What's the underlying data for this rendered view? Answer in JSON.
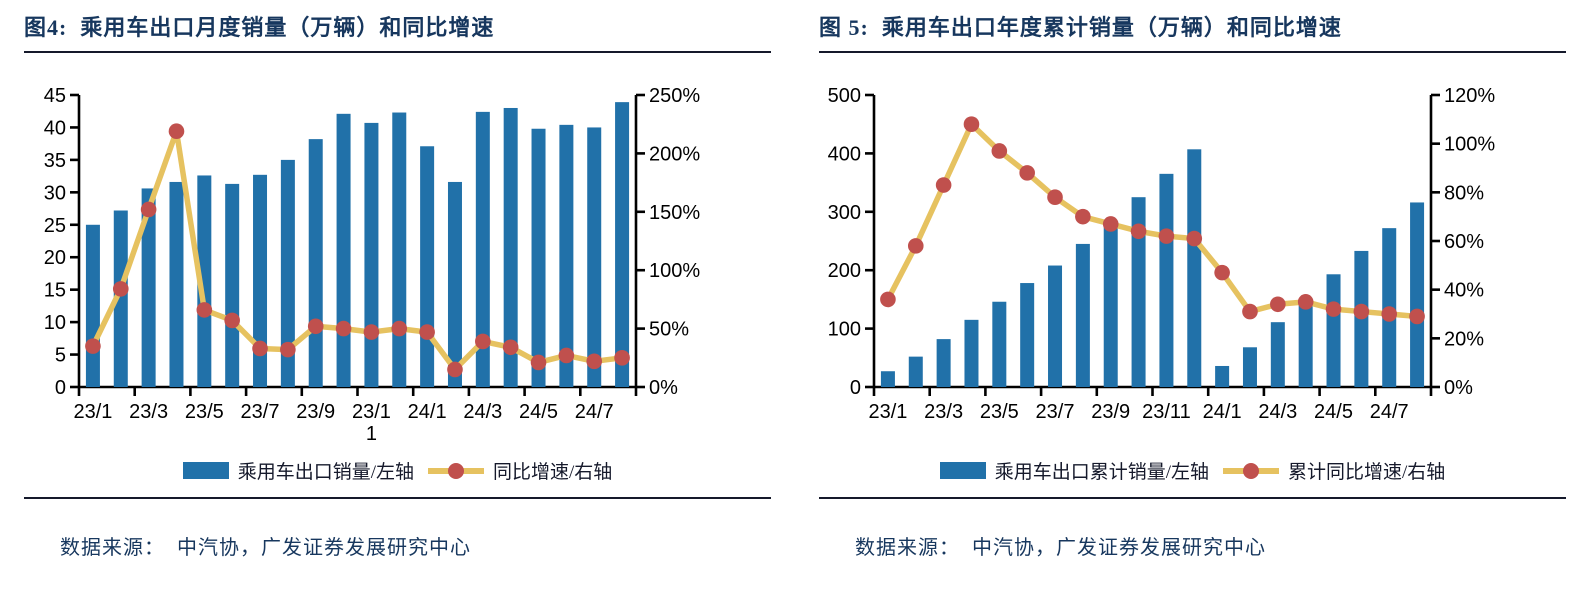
{
  "colors": {
    "bar": "#2171A9",
    "line": "#E6C260",
    "marker": "#C0504D",
    "title_navy": "#17375E"
  },
  "charts": [
    {
      "title": "图4:  乘用车出口月度销量（万辆）和同比增速",
      "legend_bar": "乘用车出口销量/左轴",
      "legend_line": "同比增速/右轴",
      "source": "数据来源：  中汽协，广发证券发展研究中心"
    },
    {
      "title": "图 5:  乘用车出口年度累计销量（万辆）和同比增速",
      "legend_bar": "乘用车出口累计销量/左轴",
      "legend_line": "累计同比增速/右轴",
      "source": "数据来源：  中汽协，广发证券发展研究中心"
    }
  ],
  "chart_data": [
    {
      "type": "bar",
      "subtype": "bar+line combo, dual axis",
      "title": "乘用车出口月度销量（万辆）和同比增速",
      "categories": [
        "23/1",
        "23/2",
        "23/3",
        "23/4",
        "23/5",
        "23/6",
        "23/7",
        "23/8",
        "23/9",
        "23/10",
        "23/11",
        "23/12",
        "24/1",
        "24/2",
        "24/3",
        "24/4",
        "24/5",
        "24/6",
        "24/7",
        "24/8"
      ],
      "series": [
        {
          "name": "乘用车出口销量/左轴",
          "type": "bar",
          "axis": "left",
          "values": [
            25.0,
            27.2,
            30.6,
            31.6,
            32.6,
            31.3,
            32.7,
            35.0,
            38.2,
            42.1,
            40.7,
            42.3,
            37.1,
            31.6,
            42.4,
            43.0,
            39.8,
            40.4,
            40.0,
            43.9
          ]
        },
        {
          "name": "同比增速/右轴",
          "type": "line",
          "axis": "right",
          "values": [
            35,
            84,
            152,
            219,
            66,
            57,
            33,
            32,
            52,
            50,
            47,
            50,
            47,
            15,
            39,
            34,
            21,
            27,
            22,
            25
          ]
        }
      ],
      "left_axis": {
        "min": 0,
        "max": 45,
        "step": 5,
        "suffix": ""
      },
      "right_axis": {
        "min": 0,
        "max": 250,
        "step": 50,
        "suffix": "%"
      },
      "x_tick_labels": [
        "23/1",
        "23/3",
        "23/5",
        "23/7",
        "23/9",
        "23/1\n1",
        "24/1",
        "24/3",
        "24/5",
        "24/7"
      ],
      "legend_position": "bottom",
      "grid": false
    },
    {
      "type": "bar",
      "subtype": "bar+line combo, dual axis",
      "title": "乘用车出口年度累计销量（万辆）和同比增速",
      "categories": [
        "23/1",
        "23/2",
        "23/3",
        "23/4",
        "23/5",
        "23/6",
        "23/7",
        "23/8",
        "23/9",
        "23/10",
        "23/11",
        "23/12",
        "24/1",
        "24/2",
        "24/3",
        "24/4",
        "24/5",
        "24/6",
        "24/7",
        "24/8"
      ],
      "series": [
        {
          "name": "乘用车出口累计销量/左轴",
          "type": "bar",
          "axis": "left",
          "values": [
            27,
            52,
            82,
            115,
            146,
            178,
            208,
            245,
            274,
            325,
            365,
            407,
            36,
            68,
            111,
            150,
            193,
            233,
            272,
            316
          ]
        },
        {
          "name": "累计同比增速/右轴",
          "type": "line",
          "axis": "right",
          "values": [
            36,
            58,
            83,
            108,
            97,
            88,
            78,
            70,
            67,
            64,
            62,
            61,
            47,
            31,
            34,
            35,
            32,
            31,
            30,
            29
          ]
        }
      ],
      "left_axis": {
        "min": 0,
        "max": 500,
        "step": 100,
        "suffix": ""
      },
      "right_axis": {
        "min": 0,
        "max": 120,
        "step": 20,
        "suffix": "%"
      },
      "x_tick_labels": [
        "23/1",
        "23/3",
        "23/5",
        "23/7",
        "23/9",
        "23/11",
        "24/1",
        "24/3",
        "24/5",
        "24/7"
      ],
      "legend_position": "bottom",
      "grid": false
    }
  ]
}
